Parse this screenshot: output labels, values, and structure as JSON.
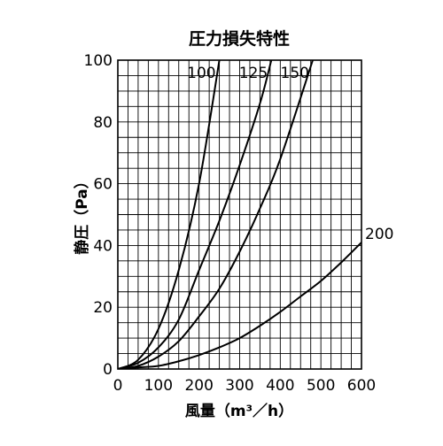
{
  "chart_data": {
    "type": "line",
    "title": "圧力損失特性",
    "xlabel": "風量（m³／h）",
    "ylabel": "静圧（Pa）",
    "xlim": [
      0,
      600
    ],
    "ylim": [
      0,
      100
    ],
    "xticks": [
      0,
      100,
      200,
      300,
      400,
      500,
      600
    ],
    "yticks": [
      0,
      20,
      40,
      60,
      80,
      100
    ],
    "grid": true,
    "series": [
      {
        "name": "100",
        "x": [
          0,
          50,
          100,
          150,
          200,
          250
        ],
        "y": [
          0,
          3,
          13,
          32,
          60,
          100
        ]
      },
      {
        "name": "125",
        "x": [
          0,
          50,
          100,
          150,
          200,
          250,
          300,
          350,
          378
        ],
        "y": [
          0,
          2,
          7,
          16,
          32,
          48,
          66,
          86,
          100
        ]
      },
      {
        "name": "150",
        "x": [
          0,
          50,
          100,
          150,
          200,
          250,
          300,
          350,
          400,
          480
        ],
        "y": [
          0,
          1,
          4,
          9,
          17,
          26,
          38,
          52,
          68,
          100
        ]
      },
      {
        "name": "200",
        "x": [
          0,
          50,
          100,
          150,
          200,
          250,
          300,
          350,
          400,
          450,
          500,
          550,
          600
        ],
        "y": [
          0,
          0.5,
          1,
          2.5,
          4.5,
          7,
          10,
          14,
          18.5,
          23.5,
          28.5,
          34.5,
          41
        ]
      }
    ]
  }
}
